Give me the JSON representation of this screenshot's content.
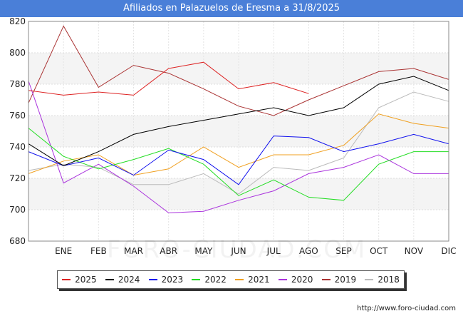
{
  "chart_data": {
    "type": "line",
    "title": "Afiliados en Palazuelos de Eresma a 31/8/2025",
    "categories": [
      "",
      "ENE",
      "FEB",
      "MAR",
      "ABR",
      "MAY",
      "JUN",
      "JUL",
      "AGO",
      "SEP",
      "OCT",
      "NOV",
      "DIC"
    ],
    "ylim": [
      680,
      820
    ],
    "yticks": [
      680,
      700,
      720,
      740,
      760,
      780,
      800,
      820
    ],
    "grid": true,
    "legend_position": "bottom",
    "series": [
      {
        "name": "2025",
        "color": "#dd2222",
        "values": [
          776,
          773,
          775,
          773,
          790,
          794,
          777,
          781,
          774,
          null,
          null,
          null,
          null
        ]
      },
      {
        "name": "2024",
        "color": "#000000",
        "values": [
          742,
          728,
          737,
          748,
          753,
          757,
          761,
          765,
          760,
          765,
          780,
          785,
          776
        ]
      },
      {
        "name": "2023",
        "color": "#1111ee",
        "values": [
          737,
          728,
          733,
          722,
          738,
          732,
          716,
          747,
          746,
          737,
          742,
          748,
          742
        ]
      },
      {
        "name": "2022",
        "color": "#22dd22",
        "values": [
          752,
          734,
          726,
          732,
          739,
          729,
          709,
          719,
          708,
          706,
          729,
          737,
          737
        ]
      },
      {
        "name": "2021",
        "color": "#f0a020",
        "values": [
          723,
          731,
          735,
          722,
          726,
          740,
          727,
          735,
          735,
          741,
          761,
          755,
          752
        ]
      },
      {
        "name": "2020",
        "color": "#aa33dd",
        "values": [
          782,
          717,
          729,
          715,
          698,
          699,
          706,
          712,
          723,
          727,
          735,
          723,
          723
        ]
      },
      {
        "name": "2019",
        "color": "#aa3333",
        "values": [
          768,
          817,
          778,
          792,
          787,
          777,
          766,
          760,
          770,
          779,
          788,
          790,
          783
        ]
      },
      {
        "name": "2018",
        "color": "#bbbbbb",
        "values": [
          725,
          729,
          727,
          716,
          716,
          723,
          710,
          727,
          725,
          733,
          765,
          775,
          769
        ]
      }
    ]
  },
  "footer": {
    "source": "http://www.foro-ciudad.com",
    "watermark": "FORO-CIUDAD.COM"
  }
}
